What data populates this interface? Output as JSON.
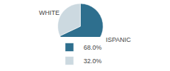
{
  "chart_data": {
    "type": "pie",
    "categories": [
      "HISPANIC",
      "WHITE"
    ],
    "values": [
      68.0,
      32.0
    ],
    "value_labels": [
      "68.0%",
      "32.0%"
    ],
    "colors": [
      "#2e6f8e",
      "#ccd9e0"
    ],
    "legend": "bottom"
  }
}
